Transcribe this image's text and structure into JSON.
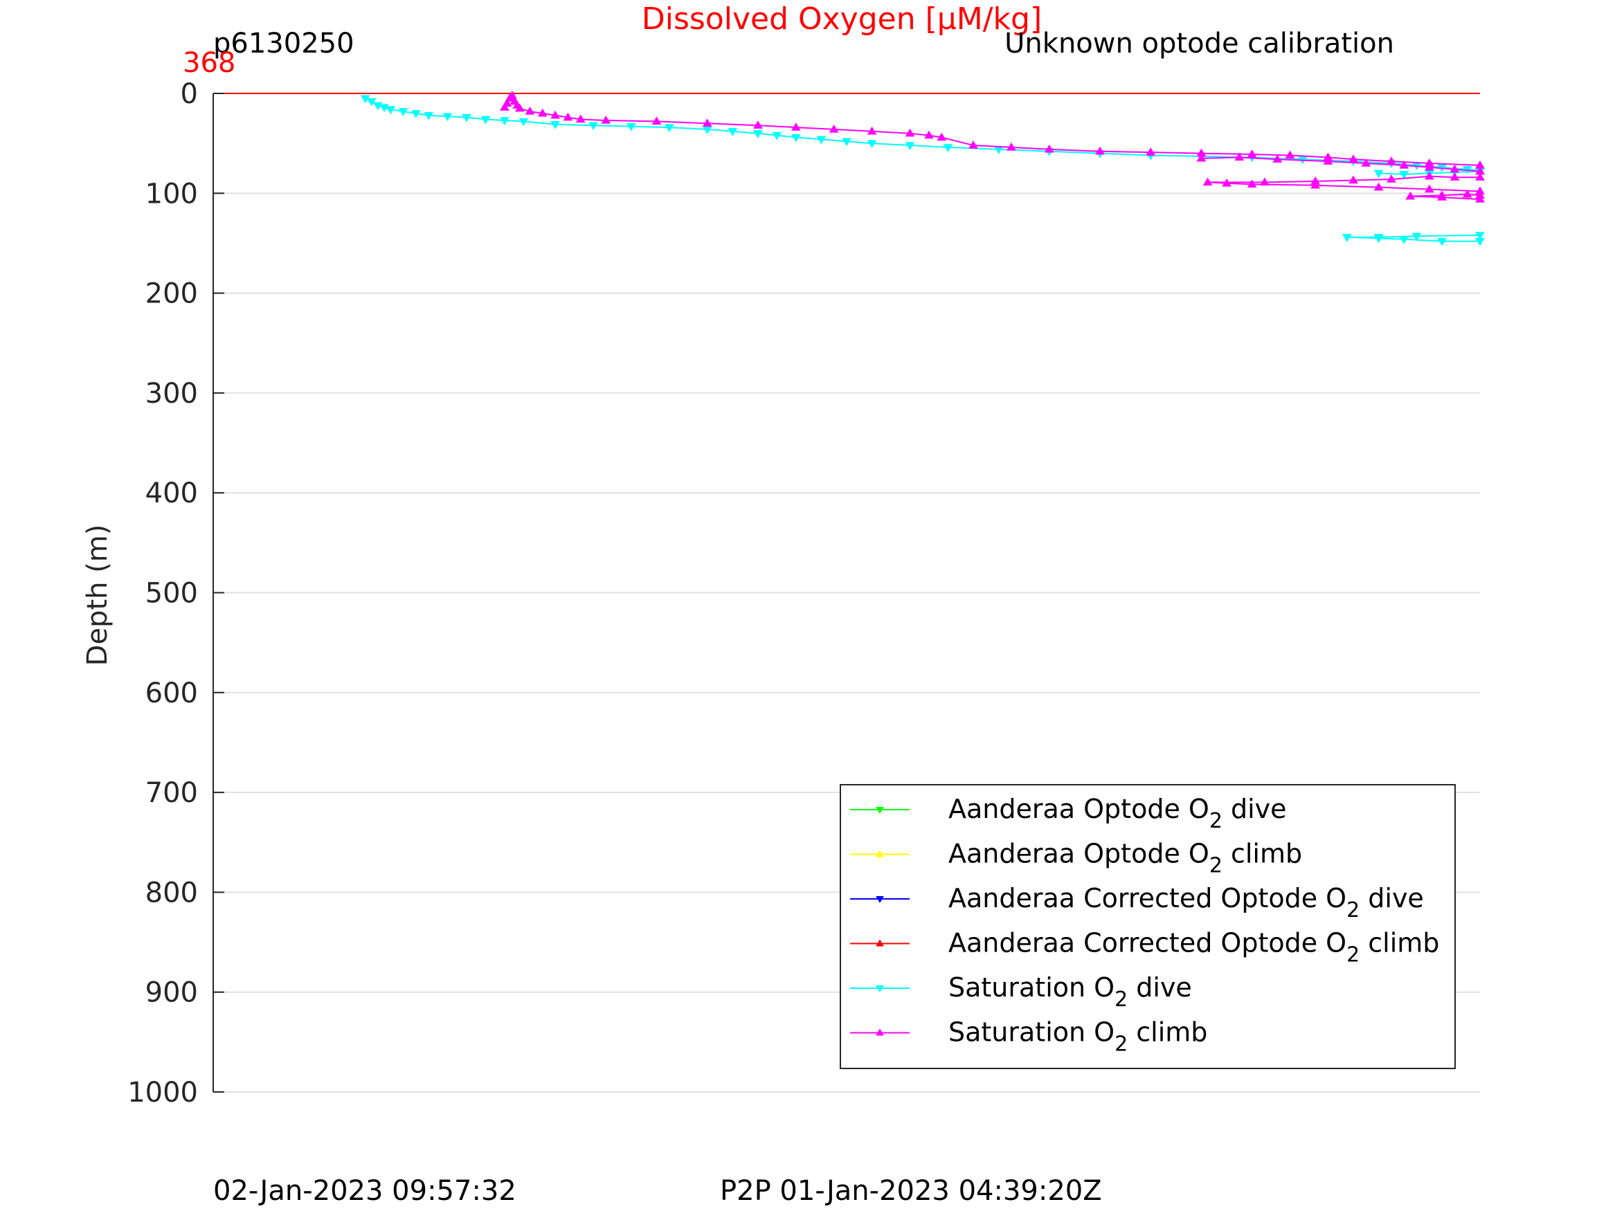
{
  "chart_data": {
    "type": "line",
    "title": "Dissolved Oxygen [μM/kg]",
    "subtitle_left": "p6130250",
    "subtitle_right": "Unknown optode calibration",
    "top_axis_value": "368",
    "ylabel": "Depth (m)",
    "xlabel": "",
    "ylim": [
      0,
      1000
    ],
    "y_reversed": true,
    "y_ticks": [
      "0",
      "100",
      "200",
      "300",
      "400",
      "500",
      "600",
      "700",
      "800",
      "900",
      "1000"
    ],
    "grid": true,
    "legend_position": "bottom-right",
    "footer_left": "02-Jan-2023 09:57:32",
    "footer_right": "P2P 01-Jan-2023 04:39:20Z",
    "legend": [
      {
        "name_pre": "Aanderaa Optode O",
        "sub": "2",
        "name_post": " dive",
        "color": "#00ff00",
        "marker": "down"
      },
      {
        "name_pre": "Aanderaa Optode O",
        "sub": "2",
        "name_post": " climb",
        "color": "#ffff00",
        "marker": "up"
      },
      {
        "name_pre": "Aanderaa Corrected Optode O",
        "sub": "2",
        "name_post": " dive",
        "color": "#0000ff",
        "marker": "down"
      },
      {
        "name_pre": "Aanderaa Corrected Optode O",
        "sub": "2",
        "name_post": " climb",
        "color": "#ff0000",
        "marker": "up"
      },
      {
        "name_pre": "Saturation O",
        "sub": "2",
        "name_post": " dive",
        "color": "#00ffff",
        "marker": "down"
      },
      {
        "name_pre": "Saturation O",
        "sub": "2",
        "name_post": " climb",
        "color": "#ff00ff",
        "marker": "up"
      }
    ],
    "x_range": [
      0,
      100
    ],
    "series": [
      {
        "key": "corrected_climb",
        "color": "#ff0000",
        "marker": "none",
        "points": [
          [
            0,
            0
          ],
          [
            100,
            0
          ]
        ]
      },
      {
        "key": "saturation_dive",
        "color": "#00ffff",
        "marker": "down",
        "points": [
          [
            12.0,
            5
          ],
          [
            12.5,
            8
          ],
          [
            13.0,
            12
          ],
          [
            13.5,
            14
          ],
          [
            14.0,
            16
          ],
          [
            15.0,
            18
          ],
          [
            16.0,
            20
          ],
          [
            17.0,
            22
          ],
          [
            18.5,
            23
          ],
          [
            20.0,
            24
          ],
          [
            21.5,
            26
          ],
          [
            23.0,
            27
          ],
          [
            24.5,
            28
          ],
          [
            27.0,
            31
          ],
          [
            30.0,
            32
          ],
          [
            33.0,
            33
          ],
          [
            36.0,
            34
          ],
          [
            39.0,
            36
          ],
          [
            41.0,
            38
          ],
          [
            43.0,
            40
          ],
          [
            44.5,
            42
          ],
          [
            46.0,
            44
          ],
          [
            48.0,
            46
          ],
          [
            50.0,
            48
          ],
          [
            52.0,
            50
          ],
          [
            55.0,
            52
          ],
          [
            58.0,
            54
          ],
          [
            62.0,
            56
          ],
          [
            66.0,
            58
          ],
          [
            70.0,
            60
          ],
          [
            74.0,
            62
          ],
          [
            78.0,
            63
          ],
          [
            82.0,
            64
          ],
          [
            86.0,
            66
          ],
          [
            90.0,
            68
          ],
          [
            93.0,
            70
          ],
          [
            95.0,
            72
          ],
          [
            97.0,
            74
          ],
          [
            99.0,
            76
          ],
          [
            100.0,
            77
          ]
        ]
      },
      {
        "key": "saturation_dive_deep",
        "color": "#00ffff",
        "marker": "down",
        "points": [
          [
            92.0,
            80
          ],
          [
            94.0,
            81
          ],
          [
            96.0,
            80
          ],
          [
            98.0,
            79
          ],
          [
            100.0,
            78
          ]
        ]
      },
      {
        "key": "saturation_dive_bottom",
        "color": "#00ffff",
        "marker": "down",
        "points": [
          [
            100.0,
            148
          ],
          [
            97.0,
            148
          ],
          [
            94.0,
            146
          ],
          [
            92.0,
            145
          ],
          [
            89.5,
            144
          ],
          [
            92.0,
            144
          ],
          [
            95.0,
            143
          ],
          [
            100.0,
            142
          ]
        ]
      },
      {
        "key": "saturation_climb",
        "color": "#ff00ff",
        "marker": "up",
        "points": [
          [
            23.0,
            14
          ],
          [
            23.2,
            10
          ],
          [
            23.4,
            5
          ],
          [
            23.6,
            2
          ],
          [
            23.8,
            8
          ],
          [
            24.0,
            12
          ],
          [
            24.2,
            15
          ],
          [
            25.0,
            18
          ],
          [
            26.0,
            20
          ],
          [
            27.0,
            22
          ],
          [
            28.0,
            24
          ],
          [
            29.0,
            26
          ],
          [
            31.0,
            27
          ],
          [
            35.0,
            28
          ],
          [
            39.0,
            30
          ],
          [
            43.0,
            32
          ],
          [
            46.0,
            34
          ],
          [
            49.0,
            36
          ],
          [
            52.0,
            38
          ],
          [
            55.0,
            40
          ],
          [
            56.5,
            42
          ],
          [
            57.5,
            44
          ],
          [
            60.0,
            52
          ],
          [
            63.0,
            54
          ],
          [
            66.0,
            56
          ],
          [
            70.0,
            58
          ],
          [
            74.0,
            59
          ],
          [
            78.0,
            60
          ],
          [
            82.0,
            61
          ],
          [
            85.0,
            62
          ],
          [
            88.0,
            64
          ],
          [
            90.0,
            66
          ],
          [
            93.0,
            68
          ],
          [
            96.0,
            70
          ],
          [
            100.0,
            72
          ]
        ]
      },
      {
        "key": "saturation_climb_deep_a",
        "color": "#ff00ff",
        "marker": "up",
        "points": [
          [
            78.0,
            65
          ],
          [
            81.0,
            64
          ],
          [
            84.0,
            66
          ],
          [
            88.0,
            68
          ],
          [
            91.0,
            70
          ],
          [
            94.0,
            72
          ],
          [
            96.0,
            74
          ],
          [
            98.0,
            76
          ],
          [
            100.0,
            78
          ]
        ]
      },
      {
        "key": "saturation_climb_deep_b",
        "color": "#ff00ff",
        "marker": "up",
        "points": [
          [
            100.0,
            84
          ],
          [
            98.0,
            84
          ],
          [
            96.0,
            83
          ],
          [
            93.0,
            86
          ],
          [
            90.0,
            87
          ],
          [
            87.0,
            88
          ],
          [
            83.0,
            89
          ],
          [
            78.5,
            89
          ],
          [
            80.0,
            90
          ],
          [
            82.0,
            91
          ],
          [
            87.0,
            92
          ],
          [
            92.0,
            94
          ],
          [
            96.0,
            96
          ],
          [
            100.0,
            98
          ]
        ]
      },
      {
        "key": "saturation_climb_deep_c",
        "color": "#ff00ff",
        "marker": "up",
        "points": [
          [
            100.0,
            106
          ],
          [
            97.0,
            104
          ],
          [
            94.5,
            103
          ],
          [
            97.0,
            102
          ],
          [
            99.0,
            101
          ],
          [
            100.0,
            102
          ]
        ]
      }
    ]
  }
}
